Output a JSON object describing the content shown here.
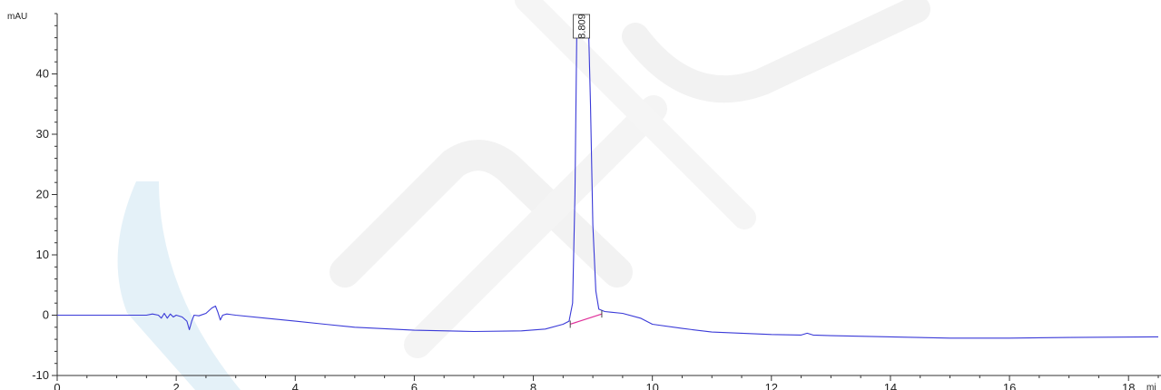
{
  "chart_data": {
    "type": "line",
    "title": "",
    "xlabel": "",
    "x_unit": "mi",
    "ylabel": "",
    "y_unit": "mAU",
    "xlim": [
      0,
      18.5
    ],
    "ylim": [
      -10,
      50
    ],
    "x_ticks": [
      0,
      2,
      4,
      6,
      8,
      10,
      12,
      14,
      16,
      18
    ],
    "y_ticks": [
      -10,
      0,
      10,
      20,
      30,
      40
    ],
    "grid": false,
    "colors": {
      "trace": "#3a3ad8",
      "baseline": "#e0309a",
      "axis": "#333333"
    },
    "series": [
      {
        "x": [
          0,
          0.5,
          1.0,
          1.5,
          1.6,
          1.7,
          1.75,
          1.8,
          1.85,
          1.9,
          1.95,
          2.0,
          2.1,
          2.18,
          2.22,
          2.26,
          2.3,
          2.38,
          2.5,
          2.6,
          2.66,
          2.7,
          2.74,
          2.78,
          2.85,
          3.0,
          3.5,
          4.0,
          4.5,
          5.0,
          6.0,
          7.0,
          7.8,
          8.2,
          8.5,
          8.6,
          8.66,
          8.7,
          8.73,
          8.76,
          8.79,
          8.83,
          8.87,
          8.9,
          8.93,
          8.96,
          9.0,
          9.05,
          9.1,
          9.2,
          9.3,
          9.5,
          9.8,
          10.0,
          10.5,
          11.0,
          12.0,
          12.5,
          12.6,
          12.7,
          13.0,
          14.0,
          15.0,
          16.0,
          17.0,
          18.5
        ],
        "y": [
          0,
          0,
          0,
          0,
          0.2,
          0,
          -0.5,
          0.3,
          -0.5,
          0.2,
          -0.3,
          0,
          -0.3,
          -1.0,
          -2.4,
          -1.0,
          0,
          -0.1,
          0.3,
          1.2,
          1.5,
          0.5,
          -0.8,
          0,
          0.2,
          0,
          -0.5,
          -1.0,
          -1.5,
          -2.0,
          -2.5,
          -2.7,
          -2.6,
          -2.3,
          -1.5,
          -1.0,
          2.0,
          20.0,
          47.0,
          47.5,
          47.5,
          47.5,
          47.5,
          47.5,
          47.0,
          35.0,
          15.0,
          4.0,
          1.0,
          0.6,
          0.5,
          0.3,
          -0.5,
          -1.5,
          -2.2,
          -2.8,
          -3.2,
          -3.3,
          -3.0,
          -3.3,
          -3.4,
          -3.6,
          -3.8,
          -3.8,
          -3.7,
          -3.6
        ]
      }
    ],
    "baseline_segment": {
      "x": [
        8.62,
        9.15
      ],
      "y": [
        -1.5,
        0.2
      ]
    },
    "peaks": [
      {
        "x": 8.809,
        "label": "8.809"
      }
    ]
  }
}
